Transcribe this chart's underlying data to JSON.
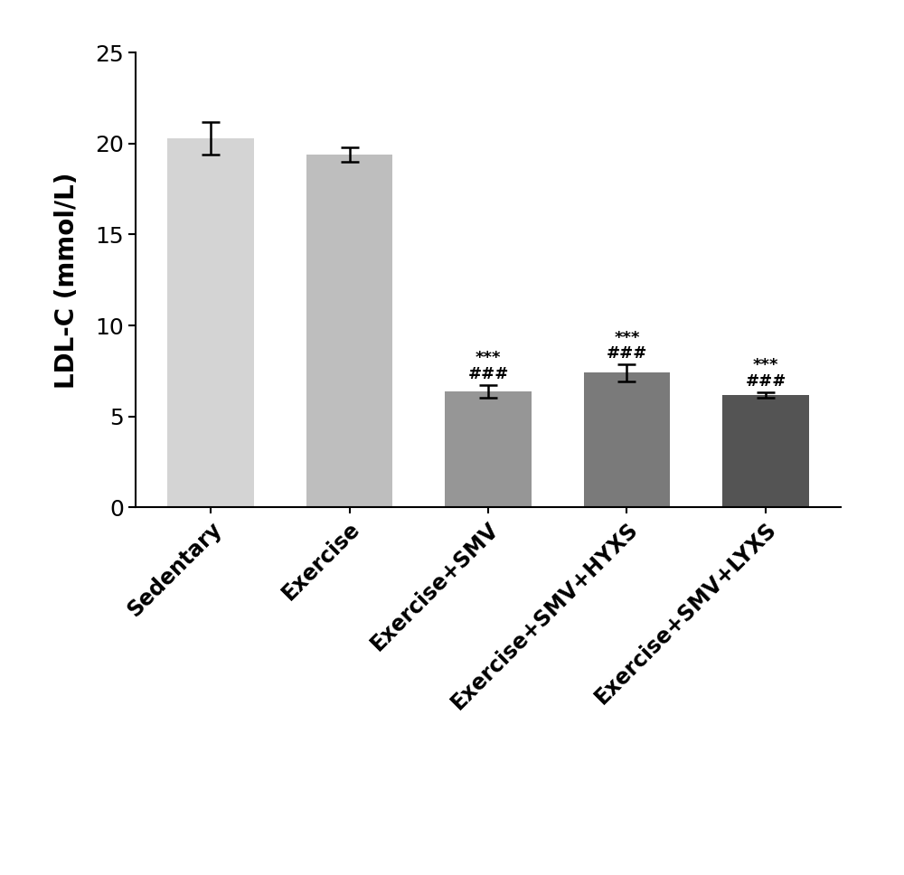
{
  "categories": [
    "Sedentary",
    "Exercise",
    "Exercise+SMV",
    "Exercise+SMV+HYXS",
    "Exercise+SMV+LYXS"
  ],
  "values": [
    20.3,
    19.4,
    6.4,
    7.4,
    6.2
  ],
  "errors": [
    0.9,
    0.4,
    0.35,
    0.45,
    0.15
  ],
  "bar_colors": [
    "#d4d4d4",
    "#bebebe",
    "#969696",
    "#7a7a7a",
    "#545454"
  ],
  "ylabel": "LDL-C (mmol/L)",
  "ylim": [
    0,
    25
  ],
  "yticks": [
    0,
    5,
    10,
    15,
    20,
    25
  ],
  "annotations": [
    {
      "index": 2,
      "line1": "***",
      "line2": "###"
    },
    {
      "index": 3,
      "line1": "***",
      "line2": "###"
    },
    {
      "index": 4,
      "line1": "***",
      "line2": "###"
    }
  ],
  "background_color": "#ffffff",
  "bar_width": 0.62,
  "figsize": [
    10.0,
    9.68
  ],
  "dpi": 100,
  "annotation_fontsize": 13,
  "ylabel_fontsize": 20,
  "ytick_fontsize": 18,
  "xtick_fontsize": 17
}
